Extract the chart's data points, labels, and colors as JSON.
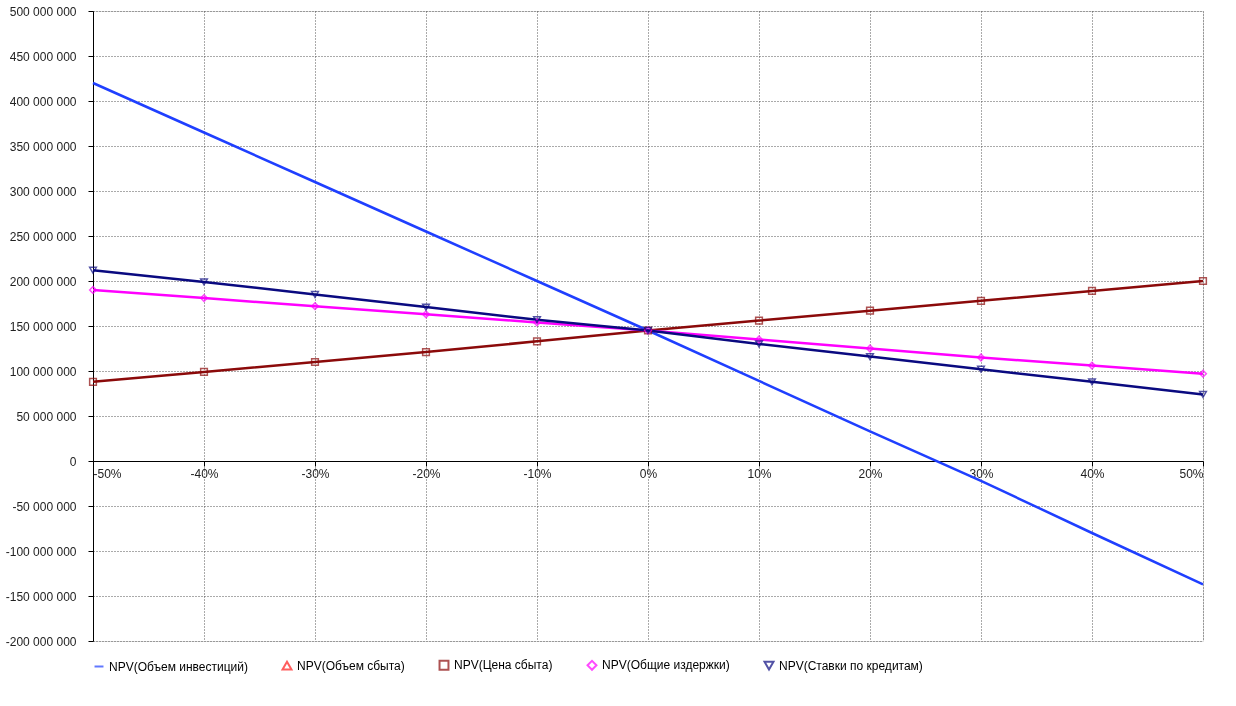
{
  "chart_data": {
    "type": "line",
    "x": [
      -50,
      -40,
      -30,
      -20,
      -10,
      0,
      10,
      20,
      30,
      40,
      50
    ],
    "series": [
      {
        "name": "NPV(Объем инвестиций)",
        "color": "#1f3fff",
        "marker": "none",
        "values": [
          420000000,
          365000000,
          310000000,
          255000000,
          200000000,
          145000000,
          89000000,
          33000000,
          -22000000,
          -80000000,
          -137000000
        ]
      },
      {
        "name": "NPV(Объем сбыта)",
        "color": "#ff1a1a",
        "marker": "triangle",
        "values": [
          null,
          null,
          null,
          null,
          null,
          null,
          null,
          null,
          null,
          null,
          null
        ]
      },
      {
        "name": "NPV(Цена сбыта)",
        "color": "#8b0a0a",
        "marker": "square",
        "values": [
          88000000,
          99000000,
          110000000,
          121000000,
          133000000,
          145000000,
          156000000,
          167000000,
          178000000,
          189000000,
          200000000
        ]
      },
      {
        "name": "NPV(Общие издержки)",
        "color": "#ff00ff",
        "marker": "diamond",
        "values": [
          190000000,
          181000000,
          172000000,
          163000000,
          154000000,
          145000000,
          135000000,
          125000000,
          115000000,
          106000000,
          97000000
        ]
      },
      {
        "name": "NPV(Ставки по кредитам)",
        "color": "#0a0a80",
        "marker": "triangle-down",
        "values": [
          212000000,
          199000000,
          185000000,
          171000000,
          157000000,
          145000000,
          130000000,
          116000000,
          102000000,
          88000000,
          74000000
        ]
      }
    ],
    "xlim": [
      -50,
      50
    ],
    "xticks": [
      {
        "value": -50,
        "label": "-50%"
      },
      {
        "value": -40,
        "label": "-40%"
      },
      {
        "value": -30,
        "label": "-30%"
      },
      {
        "value": -20,
        "label": "-20%"
      },
      {
        "value": -10,
        "label": "-10%"
      },
      {
        "value": 0,
        "label": "0%"
      },
      {
        "value": 10,
        "label": "10%"
      },
      {
        "value": 20,
        "label": "20%"
      },
      {
        "value": 30,
        "label": "30%"
      },
      {
        "value": 40,
        "label": "40%"
      },
      {
        "value": 50,
        "label": "50%"
      }
    ],
    "ylim": [
      -200000000,
      500000000
    ],
    "yticks": [
      {
        "value": -200000000,
        "label": "-200 000 000"
      },
      {
        "value": -150000000,
        "label": "-150 000 000"
      },
      {
        "value": -100000000,
        "label": "-100 000 000"
      },
      {
        "value": -50000000,
        "label": "-50 000 000"
      },
      {
        "value": 0,
        "label": "0"
      },
      {
        "value": 50000000,
        "label": "50 000 000"
      },
      {
        "value": 100000000,
        "label": "100 000 000"
      },
      {
        "value": 150000000,
        "label": "150 000 000"
      },
      {
        "value": 200000000,
        "label": "200 000 000"
      },
      {
        "value": 250000000,
        "label": "250 000 000"
      },
      {
        "value": 300000000,
        "label": "300 000 000"
      },
      {
        "value": 350000000,
        "label": "350 000 000"
      },
      {
        "value": 400000000,
        "label": "400 000 000"
      },
      {
        "value": 450000000,
        "label": "450 000 000"
      },
      {
        "value": 500000000,
        "label": "500 000 000"
      }
    ],
    "grid": true,
    "legend": "bottom",
    "line_style": "solid"
  }
}
